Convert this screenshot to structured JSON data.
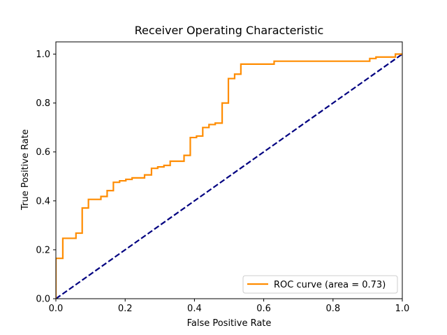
{
  "chart_data": {
    "type": "line",
    "title": "Receiver Operating Characteristic",
    "xlabel": "False Positive Rate",
    "ylabel": "True Positive Rate",
    "xlim": [
      0.0,
      1.0
    ],
    "ylim": [
      0.0,
      1.05
    ],
    "xticks": [
      0.0,
      0.2,
      0.4,
      0.6,
      0.8,
      1.0
    ],
    "xtick_labels": [
      "0.0",
      "0.2",
      "0.4",
      "0.6",
      "0.8",
      "1.0"
    ],
    "yticks": [
      0.0,
      0.2,
      0.4,
      0.6,
      0.8,
      1.0
    ],
    "ytick_labels": [
      "0.0",
      "0.2",
      "0.4",
      "0.6",
      "0.8",
      "1.0"
    ],
    "grid": false,
    "legend_position": "lower right",
    "series": [
      {
        "name": "ROC curve (area = 0.73)",
        "color": "#ff8c00",
        "style": "solid",
        "x": [
          0.0,
          0.0,
          0.0,
          0.02,
          0.02,
          0.058,
          0.058,
          0.076,
          0.076,
          0.094,
          0.094,
          0.13,
          0.13,
          0.148,
          0.148,
          0.166,
          0.166,
          0.184,
          0.184,
          0.202,
          0.202,
          0.22,
          0.22,
          0.256,
          0.256,
          0.276,
          0.276,
          0.294,
          0.294,
          0.312,
          0.312,
          0.33,
          0.33,
          0.37,
          0.37,
          0.388,
          0.388,
          0.406,
          0.406,
          0.424,
          0.424,
          0.442,
          0.442,
          0.46,
          0.46,
          0.48,
          0.48,
          0.498,
          0.498,
          0.516,
          0.516,
          0.534,
          0.534,
          0.63,
          0.63,
          0.906,
          0.906,
          0.924,
          0.924,
          0.98,
          0.98,
          1.0
        ],
        "y": [
          0.0,
          0.165,
          0.165,
          0.165,
          0.247,
          0.247,
          0.268,
          0.268,
          0.371,
          0.371,
          0.406,
          0.406,
          0.418,
          0.418,
          0.442,
          0.442,
          0.476,
          0.476,
          0.482,
          0.482,
          0.488,
          0.488,
          0.494,
          0.494,
          0.506,
          0.506,
          0.533,
          0.533,
          0.539,
          0.539,
          0.545,
          0.545,
          0.562,
          0.562,
          0.586,
          0.586,
          0.659,
          0.659,
          0.665,
          0.665,
          0.7,
          0.7,
          0.712,
          0.712,
          0.718,
          0.718,
          0.8,
          0.8,
          0.9,
          0.9,
          0.918,
          0.918,
          0.959,
          0.959,
          0.971,
          0.971,
          0.982,
          0.982,
          0.988,
          0.988,
          1.0,
          1.0
        ]
      },
      {
        "name": "",
        "color": "#000080",
        "style": "dashed",
        "x": [
          0.0,
          1.0
        ],
        "y": [
          0.0,
          1.0
        ]
      }
    ]
  }
}
